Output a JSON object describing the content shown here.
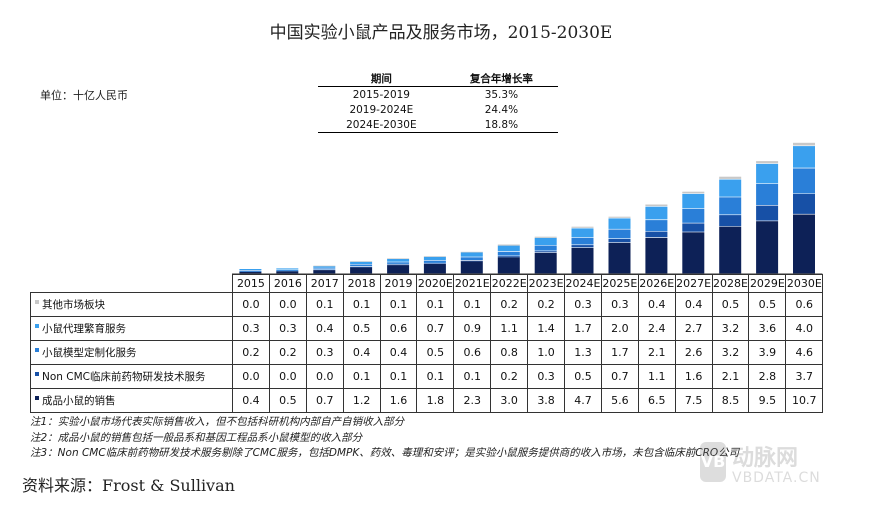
{
  "title": "中国实验小鼠产品及服务市场，2015-2030E",
  "unit_label": "单位：十亿人民币",
  "cagr_table": {
    "headers": [
      "期间",
      "复合年增长率"
    ],
    "rows": [
      {
        "period": "2015-2019",
        "rate": "35.3%"
      },
      {
        "period": "2019-2024E",
        "rate": "24.4%"
      },
      {
        "period": "2024E-2030E",
        "rate": "18.8%"
      }
    ]
  },
  "chart_data": {
    "type": "bar",
    "stacked": true,
    "title": "中国实验小鼠产品及服务市场，2015-2030E",
    "ylabel": "单位：十亿人民币",
    "categories": [
      "2015",
      "2016",
      "2017",
      "2018",
      "2019",
      "2020E",
      "2021E",
      "2022E",
      "2023E",
      "2024E",
      "2025E",
      "2026E",
      "2027E",
      "2028E",
      "2029E",
      "2030E"
    ],
    "series": [
      {
        "name": "成品小鼠的销售",
        "color": "#0d2157",
        "values": [
          0.4,
          0.5,
          0.7,
          1.2,
          1.6,
          1.8,
          2.3,
          3.0,
          3.8,
          4.7,
          5.6,
          6.5,
          7.5,
          8.5,
          9.5,
          10.7
        ]
      },
      {
        "name": "Non CMC临床前药物研发技术服务",
        "color": "#1750a6",
        "values": [
          0.0,
          0.0,
          0.0,
          0.1,
          0.1,
          0.1,
          0.1,
          0.2,
          0.3,
          0.5,
          0.7,
          1.1,
          1.6,
          2.1,
          2.8,
          3.7
        ]
      },
      {
        "name": "小鼠模型定制化服务",
        "color": "#2a7fd8",
        "values": [
          0.2,
          0.2,
          0.3,
          0.4,
          0.4,
          0.5,
          0.6,
          0.8,
          1.0,
          1.3,
          1.7,
          2.1,
          2.6,
          3.2,
          3.9,
          4.6
        ]
      },
      {
        "name": "小鼠代理繁育服务",
        "color": "#3aa0ee",
        "values": [
          0.3,
          0.3,
          0.4,
          0.5,
          0.6,
          0.7,
          0.9,
          1.1,
          1.4,
          1.7,
          2.0,
          2.4,
          2.7,
          3.2,
          3.6,
          4.0
        ]
      },
      {
        "name": "其他市场板块",
        "color": "#c8c8c8",
        "values": [
          0.0,
          0.0,
          0.1,
          0.1,
          0.1,
          0.1,
          0.1,
          0.2,
          0.2,
          0.3,
          0.3,
          0.4,
          0.4,
          0.5,
          0.5,
          0.6
        ]
      }
    ],
    "table_row_order": [
      "其他市场板块",
      "小鼠代理繁育服务",
      "小鼠模型定制化服务",
      "Non CMC临床前药物研发技术服务",
      "成品小鼠的销售"
    ],
    "grid": false,
    "legend": "table"
  },
  "notes": [
    "注1：实验小鼠市场代表实际销售收入，但不包括科研机构内部自产自销收入部分",
    "注2：成品小鼠的销售包括一般品系和基因工程品系小鼠模型的收入部分",
    "注3：Non CMC临床前药物研发技术服务剔除了CMC服务，包括DMPK、药效、毒理和安评；是实验小鼠服务提供商的收入市场，未包含临床前CRO公司"
  ],
  "source": "资料来源：Frost & Sullivan",
  "watermark": {
    "logo": "VB",
    "cn": "动脉网",
    "en": "VBDATA.CN"
  }
}
